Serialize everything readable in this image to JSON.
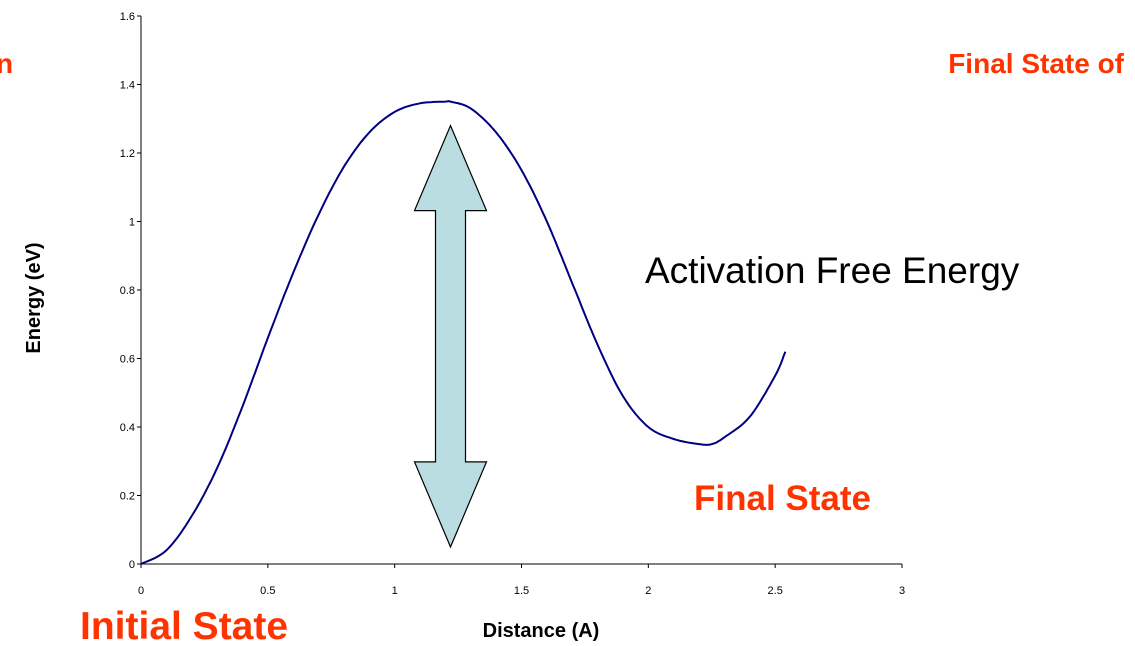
{
  "chart_data": {
    "type": "line",
    "title": "",
    "xlabel": "Distance (A)",
    "ylabel": "Energy (eV)",
    "xlim": [
      0,
      3
    ],
    "ylim": [
      0,
      1.6
    ],
    "x_ticks": [
      "0",
      "0.5",
      "1",
      "1.5",
      "2",
      "2.5",
      "3"
    ],
    "y_ticks": [
      "0",
      "0.2",
      "0.4",
      "0.6",
      "0.8",
      "1",
      "1.2",
      "1.4",
      "1.6"
    ],
    "grid": false,
    "series": [
      {
        "color": "#000080",
        "x": [
          0,
          0.1,
          0.2,
          0.3,
          0.4,
          0.5,
          0.6,
          0.7,
          0.8,
          0.9,
          1.0,
          1.1,
          1.2,
          1.22,
          1.3,
          1.4,
          1.5,
          1.6,
          1.7,
          1.8,
          1.9,
          2.0,
          2.1,
          2.2,
          2.25,
          2.3,
          2.4,
          2.5,
          2.54
        ],
        "y": [
          0,
          0.04,
          0.14,
          0.28,
          0.46,
          0.66,
          0.85,
          1.02,
          1.16,
          1.26,
          1.32,
          1.345,
          1.35,
          1.35,
          1.33,
          1.26,
          1.15,
          1.0,
          0.82,
          0.64,
          0.49,
          0.4,
          0.365,
          0.35,
          0.35,
          0.37,
          0.43,
          0.55,
          0.62
        ]
      }
    ],
    "annotations": [
      {
        "text": "Activation Free Energy",
        "color": "#000000"
      },
      {
        "text": "Final State",
        "color": "#ff3300"
      },
      {
        "text": "Initial State",
        "color": "#ff3300"
      },
      {
        "text": "Final State of",
        "color": "#ff3300"
      },
      {
        "text": "n",
        "color": "#ff3300"
      }
    ],
    "arrow": {
      "style": "double-headed",
      "fill": "#b9dde0",
      "x": 1.22,
      "y_from": 0.05,
      "y_to": 1.28
    }
  }
}
